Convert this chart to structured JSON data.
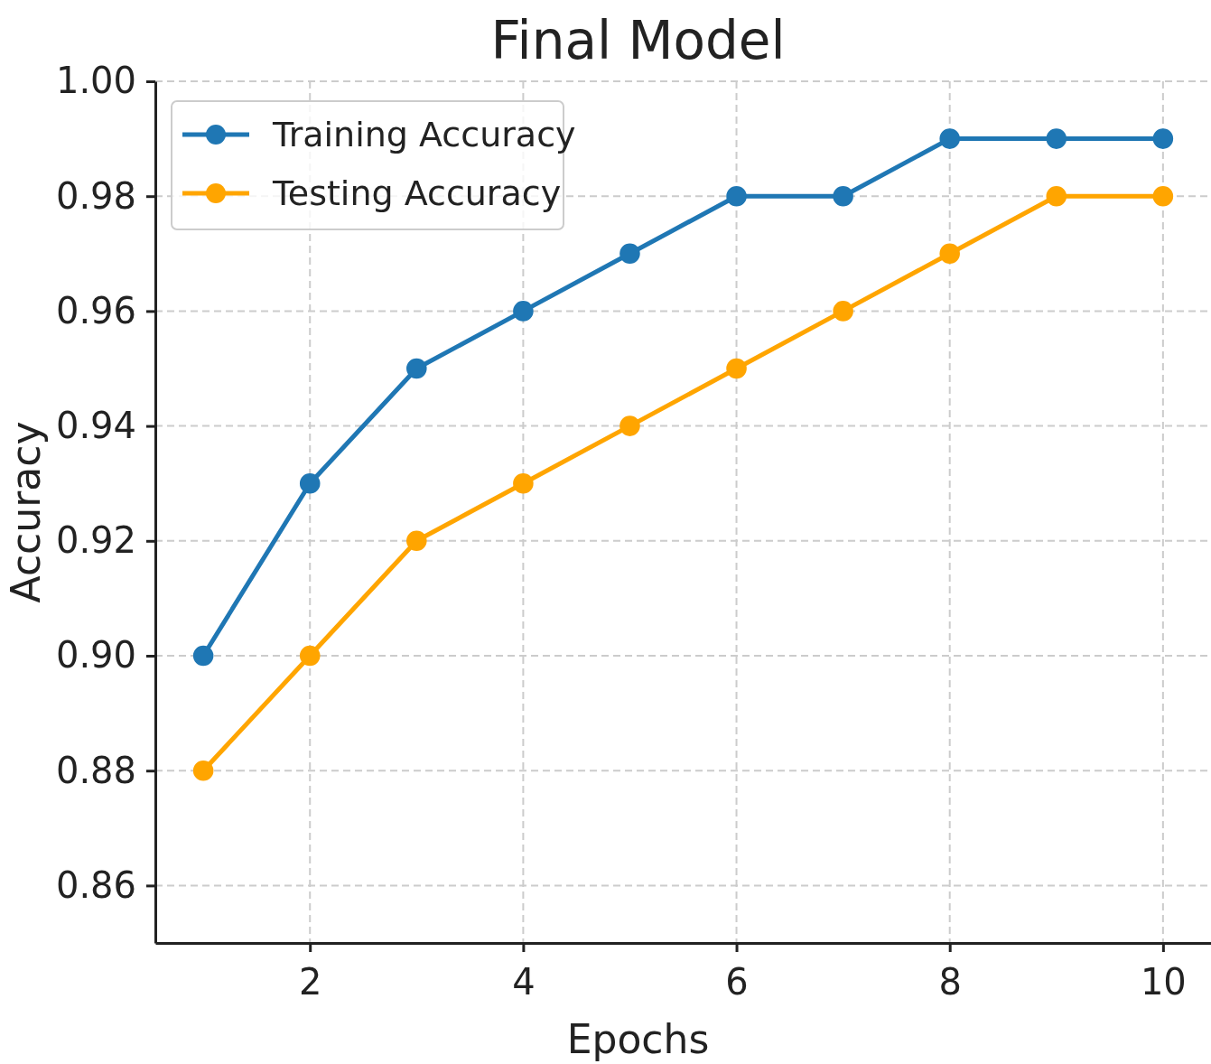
{
  "chart_data": {
    "type": "line",
    "title": "Final Model",
    "xlabel": "Epochs",
    "ylabel": "Accuracy",
    "x": [
      1,
      2,
      3,
      4,
      5,
      6,
      7,
      8,
      9,
      10
    ],
    "series": [
      {
        "name": "Training Accuracy",
        "color": "#1f77b4",
        "values": [
          0.9,
          0.93,
          0.95,
          0.96,
          0.97,
          0.98,
          0.98,
          0.99,
          0.99,
          0.99
        ]
      },
      {
        "name": "Testing Accuracy",
        "color": "#ffa500",
        "values": [
          0.88,
          0.9,
          0.92,
          0.93,
          0.94,
          0.95,
          0.96,
          0.97,
          0.98,
          0.98
        ]
      }
    ],
    "xlim": [
      0.55,
      10.45
    ],
    "xticks": [
      2,
      4,
      6,
      8,
      10
    ],
    "ylim": [
      0.85,
      1.0
    ],
    "yticks": [
      {
        "value": 0.86,
        "label": "0.86"
      },
      {
        "value": 0.88,
        "label": "0.88"
      },
      {
        "value": 0.9,
        "label": "0.90"
      },
      {
        "value": 0.92,
        "label": "0.92"
      },
      {
        "value": 0.94,
        "label": "0.94"
      },
      {
        "value": 0.96,
        "label": "0.96"
      },
      {
        "value": 0.98,
        "label": "0.98"
      },
      {
        "value": 1.0,
        "label": "1.00"
      }
    ],
    "grid": true,
    "legend": "top left",
    "marker": "circle",
    "line_style": "solid"
  }
}
